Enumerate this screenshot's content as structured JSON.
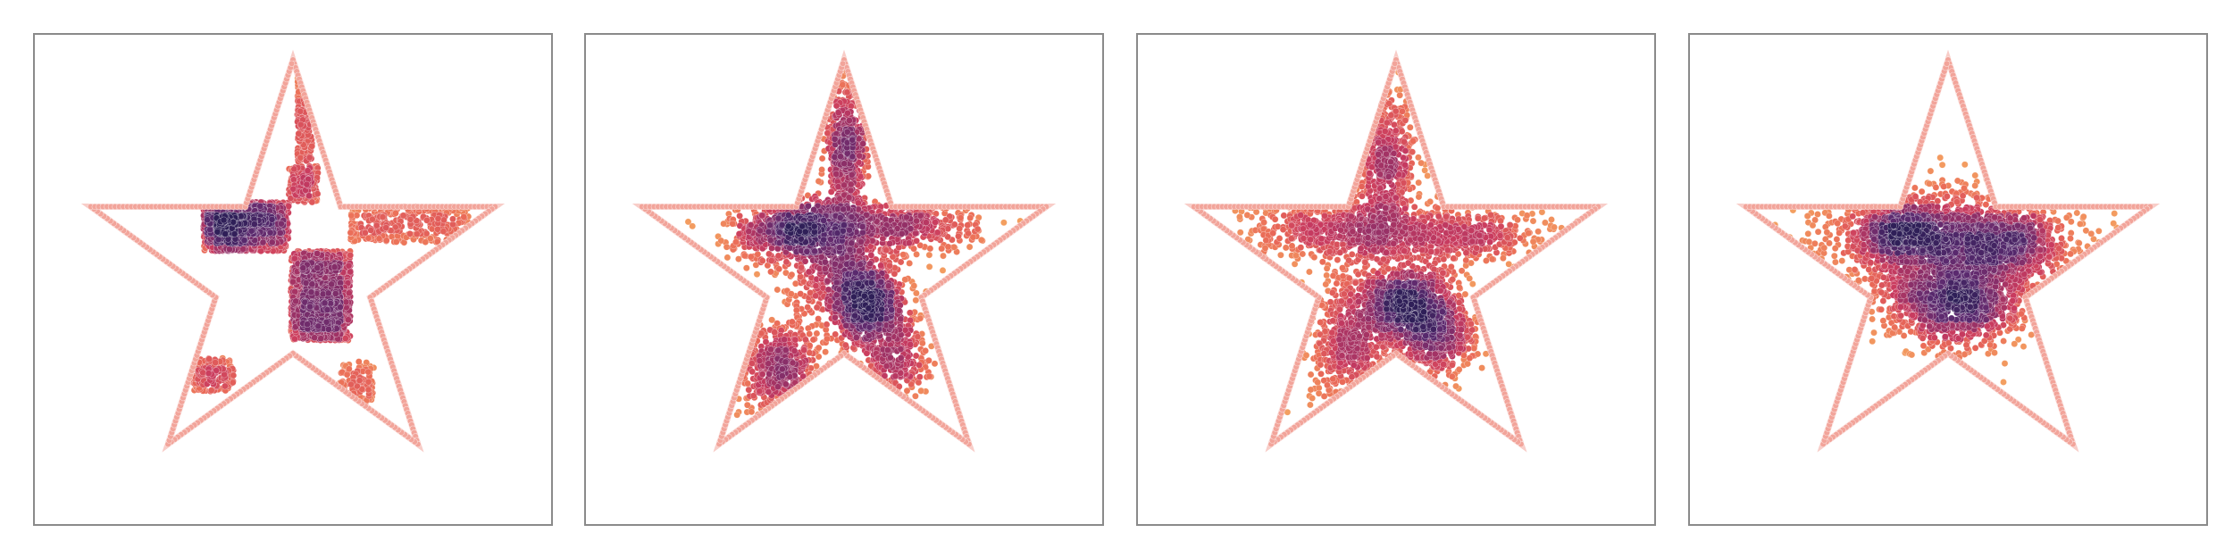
{
  "figure": {
    "panel_count": 4
  },
  "chart_data": [
    {
      "type": "scatter",
      "title": "",
      "xlabel": "",
      "ylabel": "",
      "grid": false,
      "axis_ticks": false,
      "outline": {
        "shape": "five-point star",
        "vertices": [
          [
            0.0,
            1.0
          ],
          [
            0.2245,
            0.309
          ],
          [
            0.9511,
            0.309
          ],
          [
            0.3633,
            -0.118
          ],
          [
            0.5878,
            -0.809
          ],
          [
            0.0,
            -0.382
          ],
          [
            -0.5878,
            -0.809
          ],
          [
            -0.3633,
            -0.118
          ],
          [
            -0.9511,
            0.309
          ],
          [
            -0.2245,
            0.309
          ]
        ],
        "color": "#f2a49a"
      },
      "colormap": [
        "#f4a261",
        "#ea6a58",
        "#c93b5f",
        "#8e2f68",
        "#5c2a6f",
        "#2f1f58"
      ],
      "clusters": [
        {
          "x": [
            -0.42,
            -0.22
          ],
          "y": [
            0.1,
            0.33
          ],
          "weight": 0.16
        },
        {
          "x": [
            -0.22,
            -0.02
          ],
          "y": [
            0.1,
            0.33
          ],
          "weight": 0.12
        },
        {
          "x": [
            -0.42,
            -0.02
          ],
          "y": [
            0.18,
            0.33
          ],
          "weight": 0.08
        },
        {
          "x": [
            -0.01,
            0.27
          ],
          "y": [
            -0.32,
            -0.08
          ],
          "weight": 0.22
        },
        {
          "x": [
            -0.01,
            0.27
          ],
          "y": [
            -0.08,
            0.1
          ],
          "weight": 0.14
        },
        {
          "x": [
            0.02,
            0.09
          ],
          "y": [
            0.52,
            0.93
          ],
          "weight": 0.05
        },
        {
          "x": [
            -0.02,
            0.12
          ],
          "y": [
            0.33,
            0.5
          ],
          "weight": 0.05
        },
        {
          "x": [
            0.27,
            0.83
          ],
          "y": [
            0.14,
            0.31
          ],
          "weight": 0.09
        },
        {
          "x": [
            -0.47,
            -0.28
          ],
          "y": [
            -0.56,
            -0.4
          ],
          "weight": 0.05
        },
        {
          "x": [
            0.22,
            0.38
          ],
          "y": [
            -0.62,
            -0.42
          ],
          "weight": 0.03
        }
      ]
    },
    {
      "type": "scatter",
      "title": "",
      "xlabel": "",
      "ylabel": "",
      "grid": false,
      "axis_ticks": false,
      "outline": {
        "shape": "five-point star",
        "vertices": [
          [
            0.0,
            1.0
          ],
          [
            0.2245,
            0.309
          ],
          [
            0.9511,
            0.309
          ],
          [
            0.3633,
            -0.118
          ],
          [
            0.5878,
            -0.809
          ],
          [
            0.0,
            -0.382
          ],
          [
            -0.5878,
            -0.809
          ],
          [
            -0.3633,
            -0.118
          ],
          [
            -0.9511,
            0.309
          ],
          [
            -0.2245,
            0.309
          ]
        ],
        "color": "#f2a49a"
      },
      "colormap": [
        "#f4a261",
        "#ea6a58",
        "#c93b5f",
        "#8e2f68",
        "#5c2a6f",
        "#2f1f58"
      ],
      "clusters": [
        {
          "center": [
            -0.22,
            0.2
          ],
          "spread": [
            0.16,
            0.08
          ],
          "weight": 0.22
        },
        {
          "center": [
            0.1,
            -0.15
          ],
          "spread": [
            0.1,
            0.1
          ],
          "weight": 0.22
        },
        {
          "center": [
            0.28,
            0.22
          ],
          "spread": [
            0.18,
            0.06
          ],
          "weight": 0.12
        },
        {
          "center": [
            0.01,
            0.55
          ],
          "spread": [
            0.05,
            0.18
          ],
          "weight": 0.14
        },
        {
          "center": [
            -0.3,
            -0.45
          ],
          "spread": [
            0.1,
            0.12
          ],
          "weight": 0.12
        },
        {
          "center": [
            0.25,
            -0.4
          ],
          "spread": [
            0.08,
            0.12
          ],
          "weight": 0.08
        },
        {
          "center": [
            -0.05,
            0.05
          ],
          "spread": [
            0.12,
            0.12
          ],
          "weight": 0.1
        }
      ]
    },
    {
      "type": "scatter",
      "title": "",
      "xlabel": "",
      "ylabel": "",
      "grid": false,
      "axis_ticks": false,
      "outline": {
        "shape": "five-point star",
        "vertices": [
          [
            0.0,
            1.0
          ],
          [
            0.2245,
            0.309
          ],
          [
            0.9511,
            0.309
          ],
          [
            0.3633,
            -0.118
          ],
          [
            0.5878,
            -0.809
          ],
          [
            0.0,
            -0.382
          ],
          [
            -0.5878,
            -0.809
          ],
          [
            -0.3633,
            -0.118
          ],
          [
            -0.9511,
            0.309
          ],
          [
            -0.2245,
            0.309
          ]
        ],
        "color": "#f2a49a"
      },
      "colormap": [
        "#f4a261",
        "#ea6a58",
        "#c93b5f",
        "#8e2f68",
        "#5c2a6f",
        "#2f1f58"
      ],
      "clusters": [
        {
          "center": [
            0.05,
            -0.15
          ],
          "spread": [
            0.12,
            0.09
          ],
          "weight": 0.26
        },
        {
          "center": [
            -0.25,
            0.2
          ],
          "spread": [
            0.22,
            0.08
          ],
          "weight": 0.18
        },
        {
          "center": [
            0.3,
            0.18
          ],
          "spread": [
            0.22,
            0.07
          ],
          "weight": 0.14
        },
        {
          "center": [
            -0.05,
            0.52
          ],
          "spread": [
            0.07,
            0.18
          ],
          "weight": 0.14
        },
        {
          "center": [
            -0.22,
            -0.35
          ],
          "spread": [
            0.1,
            0.16
          ],
          "weight": 0.14
        },
        {
          "center": [
            0.18,
            -0.3
          ],
          "spread": [
            0.1,
            0.1
          ],
          "weight": 0.14
        }
      ]
    },
    {
      "type": "scatter",
      "title": "",
      "xlabel": "",
      "ylabel": "",
      "grid": false,
      "axis_ticks": false,
      "outline": {
        "shape": "five-point star",
        "vertices": [
          [
            0.0,
            1.0
          ],
          [
            0.2245,
            0.309
          ],
          [
            0.9511,
            0.309
          ],
          [
            0.3633,
            -0.118
          ],
          [
            0.5878,
            -0.809
          ],
          [
            0.0,
            -0.382
          ],
          [
            -0.5878,
            -0.809
          ],
          [
            -0.3633,
            -0.118
          ],
          [
            -0.9511,
            0.309
          ],
          [
            -0.2245,
            0.309
          ]
        ],
        "color": "#f2a49a"
      },
      "colormap": [
        "#f4a261",
        "#ea6a58",
        "#c93b5f",
        "#8e2f68",
        "#5c2a6f",
        "#2f1f58"
      ],
      "clusters": [
        {
          "center": [
            0.05,
            -0.15
          ],
          "spread": [
            0.16,
            0.1
          ],
          "weight": 0.3
        },
        {
          "center": [
            0.0,
            0.12
          ],
          "spread": [
            0.28,
            0.14
          ],
          "weight": 0.4
        },
        {
          "center": [
            0.28,
            0.14
          ],
          "spread": [
            0.14,
            0.08
          ],
          "weight": 0.15
        },
        {
          "center": [
            -0.22,
            0.18
          ],
          "spread": [
            0.14,
            0.07
          ],
          "weight": 0.15
        }
      ]
    }
  ]
}
